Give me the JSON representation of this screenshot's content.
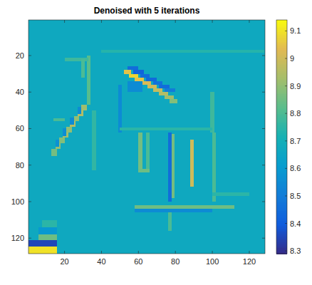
{
  "chart_data": {
    "type": "heatmap",
    "title": "Denoised with 5 iterations",
    "xlim": [
      0.5,
      128.5
    ],
    "ylim": [
      0.5,
      128.5
    ],
    "xticks": [
      20,
      40,
      60,
      80,
      100,
      120
    ],
    "yticks": [
      20,
      40,
      60,
      80,
      100,
      120
    ],
    "colorbar": {
      "range": [
        8.29,
        9.14
      ],
      "ticks": [
        8.3,
        8.4,
        8.5,
        8.6,
        8.7,
        8.8,
        8.9,
        9,
        9.1
      ]
    },
    "cells": [
      [
        0.5,
        128.5,
        0.5,
        128.5,
        8.67
      ],
      [
        40,
        128,
        17,
        18.5,
        8.74
      ],
      [
        32,
        34,
        20,
        47,
        8.82
      ],
      [
        20,
        33,
        21,
        23,
        8.78
      ],
      [
        29,
        31,
        22,
        32,
        8.8
      ],
      [
        29,
        32,
        47,
        50,
        8.92
      ],
      [
        27,
        30,
        50,
        53,
        8.95
      ],
      [
        25,
        28,
        53,
        56,
        8.9
      ],
      [
        23,
        26,
        56,
        59,
        8.95
      ],
      [
        21,
        24,
        59,
        62,
        8.9
      ],
      [
        19,
        22,
        62,
        65,
        8.92
      ],
      [
        17,
        20,
        65,
        68,
        8.88
      ],
      [
        15,
        18,
        68,
        71,
        8.9
      ],
      [
        13,
        16,
        71,
        75,
        8.86
      ],
      [
        27,
        29,
        48,
        52,
        8.55
      ],
      [
        23,
        25,
        54,
        58,
        8.55
      ],
      [
        19,
        21,
        60,
        64,
        8.56
      ],
      [
        15,
        17,
        66,
        70,
        8.57
      ],
      [
        35,
        37,
        50,
        83,
        8.76
      ],
      [
        14,
        20,
        54.5,
        56,
        8.8
      ],
      [
        52,
        56,
        28,
        30,
        9.05
      ],
      [
        55,
        60,
        30,
        32,
        9.08
      ],
      [
        58,
        63,
        32,
        34,
        9.05
      ],
      [
        62,
        67,
        34,
        36,
        9.02
      ],
      [
        65,
        70,
        36,
        38,
        9.0
      ],
      [
        68,
        73,
        38,
        40,
        8.98
      ],
      [
        71,
        76,
        40,
        42,
        8.95
      ],
      [
        74,
        79,
        42,
        44,
        8.92
      ],
      [
        77,
        81,
        44,
        46,
        8.88
      ],
      [
        54,
        60,
        26,
        28,
        8.45
      ],
      [
        57,
        63,
        28,
        30,
        8.42
      ],
      [
        61,
        66,
        30,
        32,
        8.45
      ],
      [
        64,
        70,
        32,
        34,
        8.44
      ],
      [
        68,
        73,
        34,
        36,
        8.47
      ],
      [
        71,
        77,
        36,
        38,
        8.45
      ],
      [
        74,
        80,
        38,
        40,
        8.5
      ],
      [
        54,
        62,
        34,
        40,
        8.55
      ],
      [
        49,
        51,
        36,
        62,
        8.55
      ],
      [
        99,
        101,
        40,
        62,
        8.78
      ],
      [
        50,
        100,
        59.5,
        61,
        8.75
      ],
      [
        60,
        62,
        62,
        84,
        8.86
      ],
      [
        64,
        66,
        62,
        84,
        8.8
      ],
      [
        60,
        66,
        82,
        84,
        8.85
      ],
      [
        76,
        78,
        62,
        100,
        8.45
      ],
      [
        78,
        79.5,
        63,
        98,
        8.86
      ],
      [
        88,
        90,
        66,
        92,
        9.0
      ],
      [
        100,
        102,
        62,
        100,
        8.8
      ],
      [
        58,
        112,
        102,
        104,
        8.85
      ],
      [
        58,
        100,
        104,
        106,
        8.55
      ],
      [
        76,
        78,
        106,
        116,
        8.8
      ],
      [
        100,
        120,
        95,
        97,
        8.75
      ],
      [
        8,
        16,
        110,
        114,
        8.75
      ],
      [
        6,
        16,
        114,
        118,
        8.6
      ],
      [
        6,
        16,
        118,
        121,
        8.85
      ],
      [
        0.5,
        16,
        121,
        124.5,
        8.35
      ],
      [
        0.5,
        16,
        124.5,
        128.5,
        9.1
      ]
    ]
  }
}
